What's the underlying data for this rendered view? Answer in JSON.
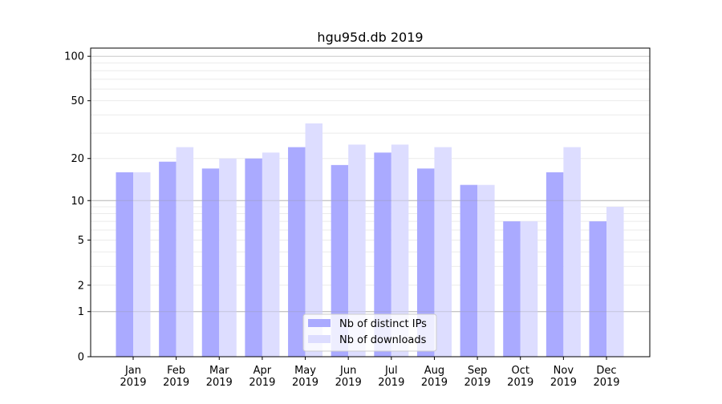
{
  "chart_data": {
    "type": "bar",
    "title": "hgu95d.db 2019",
    "xlabel": "",
    "ylabel": "",
    "yscale": "log(1+y)",
    "ylim": [
      0,
      110
    ],
    "yticks": [
      0,
      1,
      2,
      5,
      10,
      20,
      50,
      100
    ],
    "categories": [
      "Jan\n2019",
      "Feb\n2019",
      "Mar\n2019",
      "Apr\n2019",
      "May\n2019",
      "Jun\n2019",
      "Jul\n2019",
      "Aug\n2019",
      "Sep\n2019",
      "Oct\n2019",
      "Nov\n2019",
      "Dec\n2019"
    ],
    "series": [
      {
        "name": "Nb of distinct IPs",
        "color": "#aaaaff",
        "values": [
          16,
          19,
          17,
          20,
          24,
          18,
          22,
          17,
          13,
          7,
          16,
          7
        ]
      },
      {
        "name": "Nb of downloads",
        "color": "#ddddff",
        "values": [
          16,
          24,
          20,
          22,
          35,
          25,
          25,
          24,
          13,
          7,
          24,
          9
        ]
      }
    ],
    "grid": true,
    "legend": "bottom-center"
  }
}
